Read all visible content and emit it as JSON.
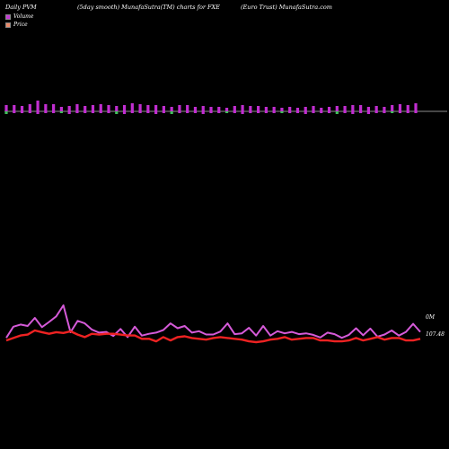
{
  "header": {
    "left": "Daily PVM",
    "middle": "(5day smooth) MunafaSutra(TM) charts for FXE",
    "right": "(Euro  Trust) MunafaSutra.com"
  },
  "legend": {
    "volume_label": "Volume",
    "price_label": "Price",
    "volume_color": "#c23bd4",
    "price_color": "#e98a6a"
  },
  "colors": {
    "background": "#000000",
    "up_bar": "#c12ed0",
    "down_bar": "#3fbf5a",
    "volume_line": "#d55ad8",
    "price_line": "#ee2222"
  },
  "chart_data": {
    "type": "line",
    "volume_axis_label": "0M",
    "price_axis_label": "107.48",
    "bars": {
      "up": [
        7,
        7,
        6,
        8,
        12,
        8,
        8,
        5,
        6,
        8,
        6,
        7,
        8,
        7,
        6,
        7,
        9,
        8,
        7,
        7,
        6,
        5,
        7,
        7,
        5,
        6,
        5,
        5,
        4,
        6,
        7,
        6,
        6,
        5,
        5,
        4,
        5,
        4,
        5,
        6,
        4,
        5,
        6,
        6,
        7,
        7,
        5,
        6,
        5,
        7,
        8,
        7,
        9
      ],
      "down": [
        3,
        2,
        2,
        2,
        3,
        2,
        2,
        2,
        3,
        2,
        2,
        2,
        2,
        2,
        3,
        3,
        2,
        2,
        2,
        3,
        2,
        3,
        2,
        2,
        2,
        3,
        2,
        2,
        2,
        2,
        3,
        2,
        2,
        2,
        2,
        2,
        2,
        2,
        3,
        2,
        2,
        2,
        3,
        2,
        3,
        2,
        3,
        2,
        2,
        2,
        2,
        2,
        2
      ]
    },
    "series": [
      {
        "name": "Volume",
        "values": [
          2,
          32,
          38,
          34,
          56,
          31,
          45,
          60,
          90,
          17,
          48,
          41,
          24,
          16,
          18,
          7,
          26,
          4,
          32,
          8,
          13,
          16,
          23,
          41,
          28,
          34,
          16,
          20,
          11,
          11,
          19,
          41,
          12,
          14,
          29,
          8,
          34,
          8,
          20,
          14,
          18,
          12,
          14,
          10,
          3,
          16,
          12,
          2,
          10,
          28,
          9,
          27,
          5,
          11,
          22,
          8,
          18,
          40,
          18
        ]
      },
      {
        "name": "Price",
        "values": [
          2,
          5,
          8,
          9,
          14,
          12,
          10,
          12,
          11,
          13,
          9,
          6,
          10,
          9,
          10,
          10,
          9,
          8,
          8,
          4,
          4,
          1,
          6,
          2,
          6,
          7,
          5,
          4,
          3,
          5,
          6,
          5,
          4,
          3,
          1,
          0,
          1,
          3,
          4,
          6,
          3,
          4,
          5,
          5,
          2,
          2,
          1,
          1,
          2,
          5,
          2,
          4,
          6,
          3,
          5,
          5,
          2,
          2,
          4
        ]
      }
    ]
  }
}
